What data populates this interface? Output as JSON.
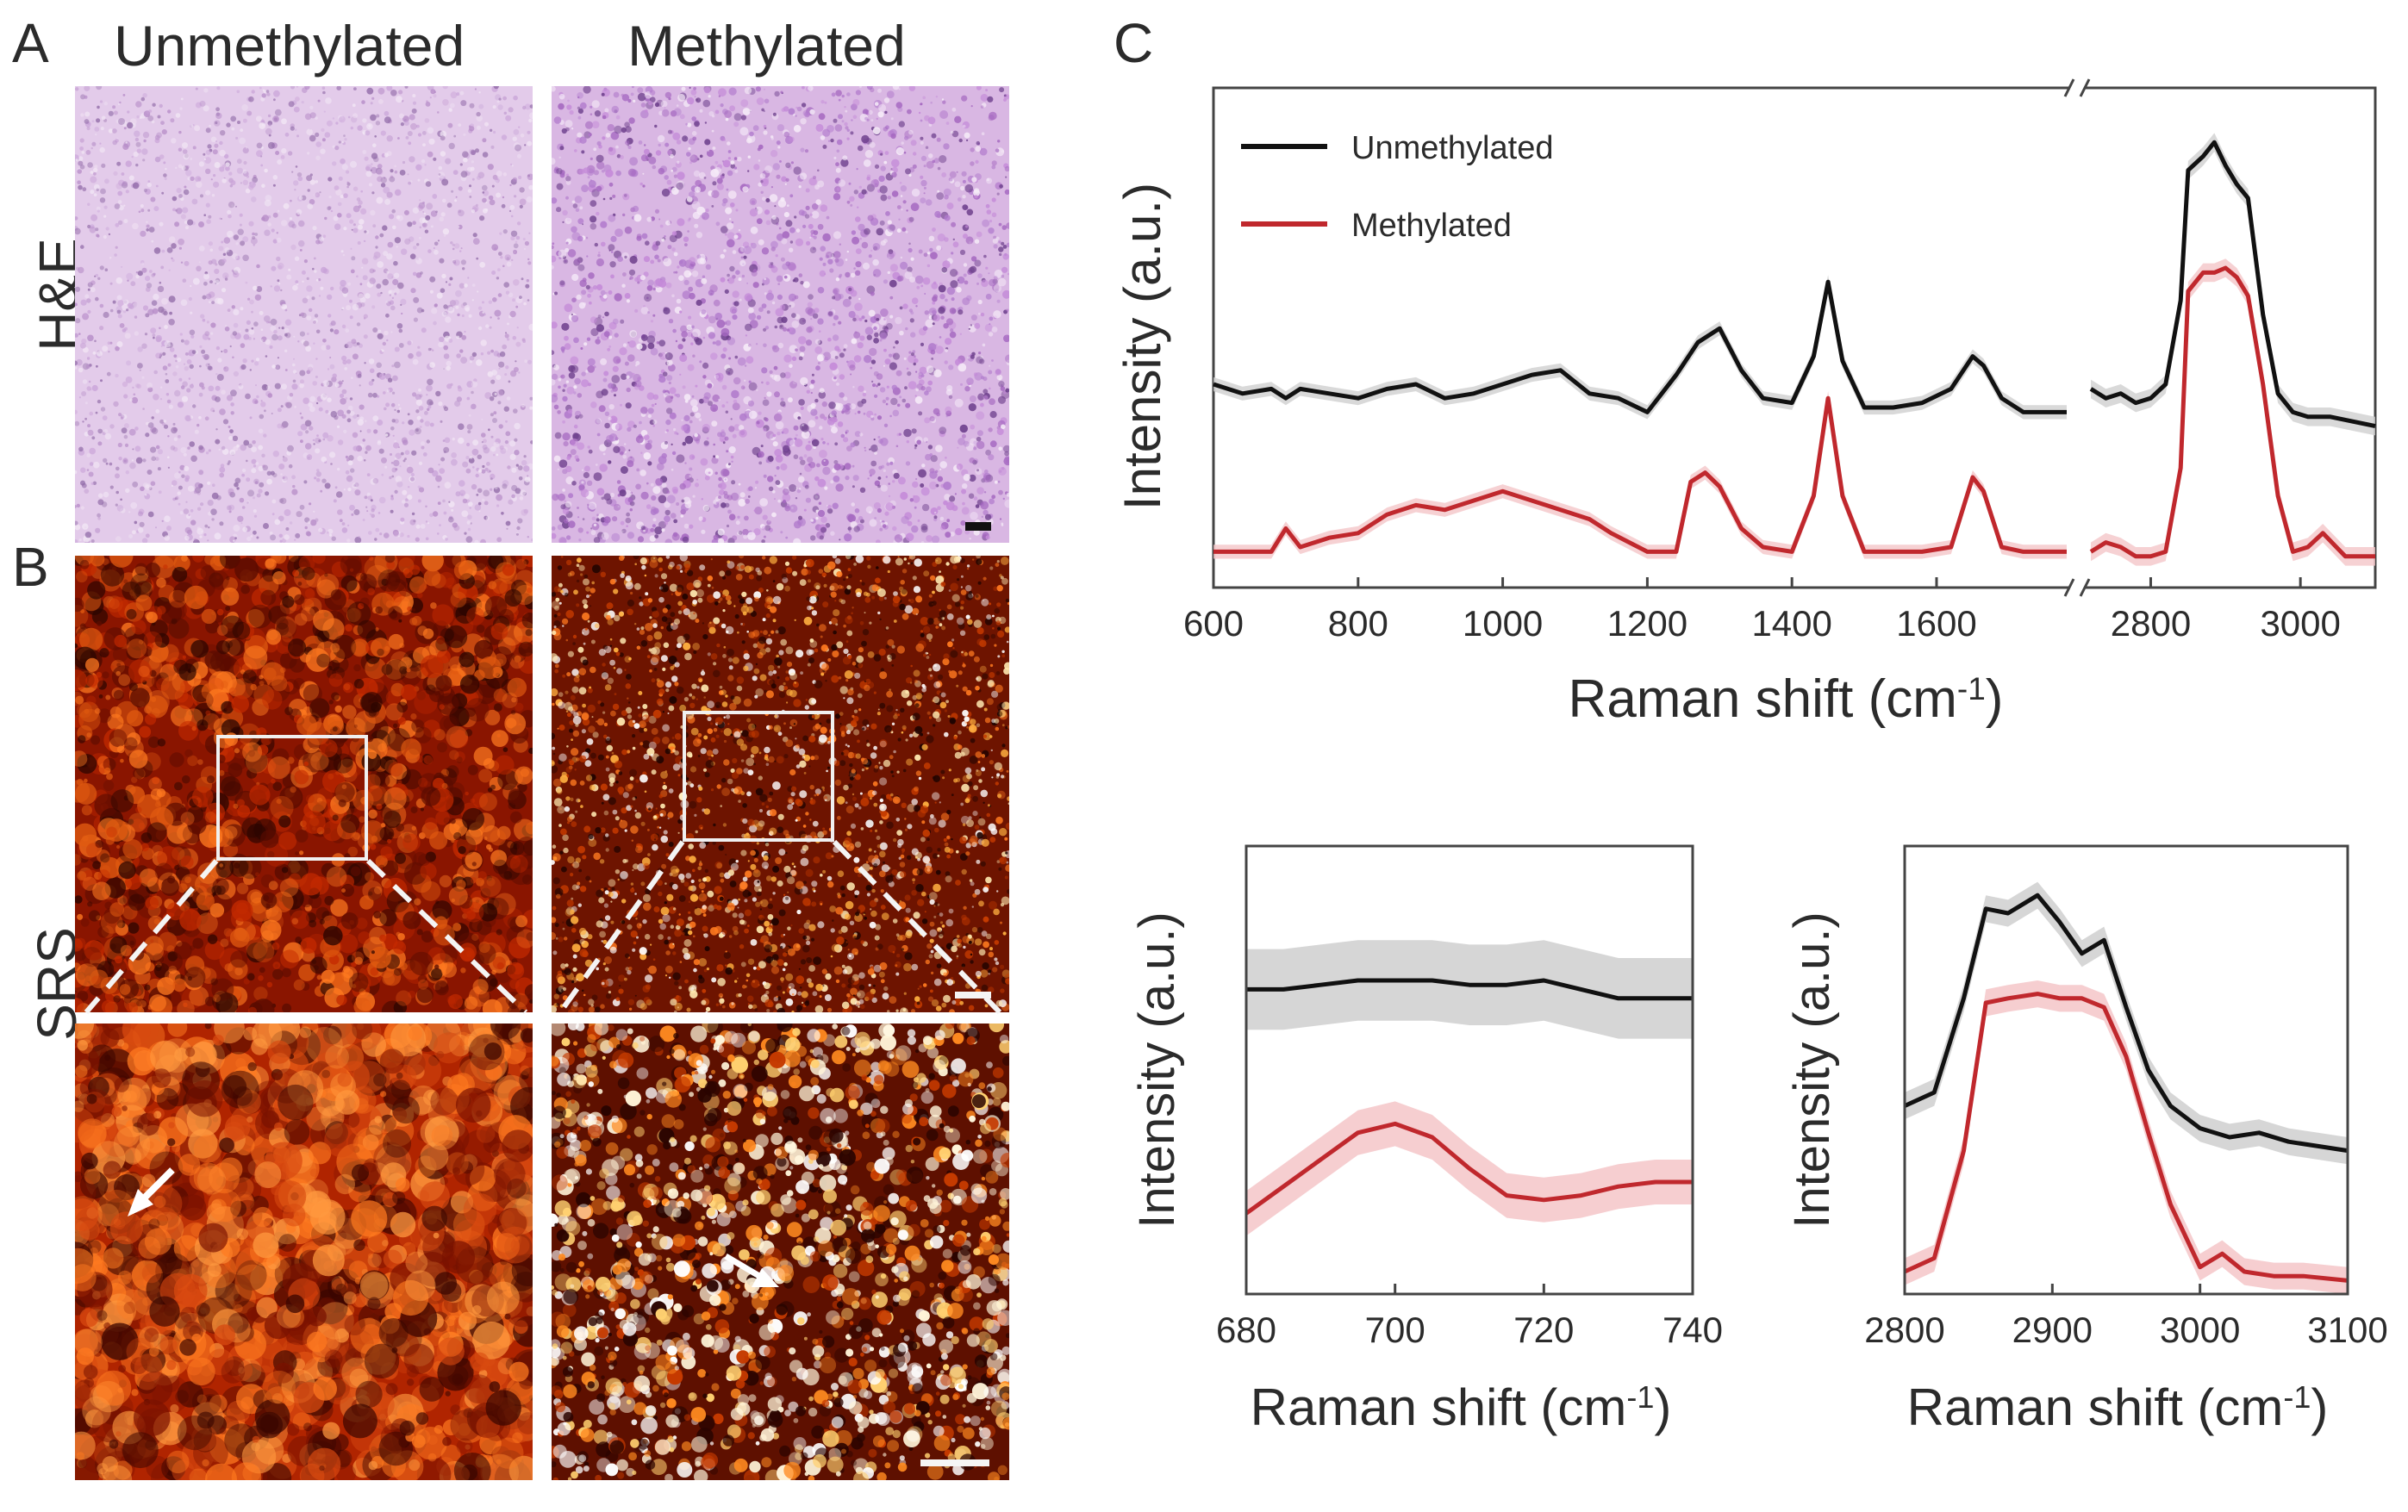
{
  "figure": {
    "panel_a": "A",
    "panel_b": "B",
    "panel_c": "C",
    "col_unmethylated": "Unmethylated",
    "col_methylated": "Methylated",
    "row_he": "H&E",
    "row_srs": "SRS"
  },
  "colors": {
    "he_bg": "#d9b7e3",
    "srs_bg": "#8a1500",
    "black_series": "#111111",
    "red_series": "#c0282d",
    "black_band": "#cfcfcf",
    "red_band": "#f4c6c8"
  },
  "chart_data": [
    {
      "type": "line",
      "id": "main",
      "xlabel": "Raman shift (cm",
      "xlabel_sup": "-1",
      "xlabel_close": ")",
      "ylabel": "Intensity (a.u.)",
      "axis_break": "//",
      "x_segments": [
        [
          600,
          1780
        ],
        [
          2720,
          3100
        ]
      ],
      "xticks_left": [
        "600",
        "800",
        "1000",
        "1200",
        "1400",
        "1600"
      ],
      "xticks_right": [
        "2800",
        "3000"
      ],
      "xtick_values_left": [
        600,
        800,
        1000,
        1200,
        1400,
        1600
      ],
      "xtick_values_right": [
        2800,
        3000
      ],
      "legend": [
        {
          "name": "Unmethylated",
          "color": "#111111"
        },
        {
          "name": "Methylated",
          "color": "#c0282d"
        }
      ],
      "ylim": [
        0,
        1
      ],
      "series": [
        {
          "name": "Unmethylated",
          "color": "#111111",
          "x": [
            600,
            640,
            680,
            700,
            720,
            760,
            800,
            840,
            880,
            920,
            960,
            1000,
            1040,
            1080,
            1120,
            1160,
            1200,
            1240,
            1270,
            1300,
            1330,
            1360,
            1400,
            1430,
            1450,
            1470,
            1500,
            1540,
            1580,
            1620,
            1650,
            1665,
            1690,
            1720,
            1760,
            1780
          ],
          "y": [
            0.4,
            0.38,
            0.39,
            0.37,
            0.39,
            0.38,
            0.37,
            0.39,
            0.4,
            0.37,
            0.38,
            0.4,
            0.42,
            0.43,
            0.38,
            0.37,
            0.34,
            0.42,
            0.49,
            0.52,
            0.43,
            0.37,
            0.36,
            0.46,
            0.62,
            0.45,
            0.35,
            0.35,
            0.36,
            0.39,
            0.46,
            0.44,
            0.37,
            0.34,
            0.34,
            0.34
          ],
          "x2": [
            2720,
            2740,
            2760,
            2780,
            2800,
            2820,
            2840,
            2850,
            2870,
            2885,
            2900,
            2915,
            2930,
            2950,
            2970,
            2990,
            3010,
            3040,
            3070,
            3100
          ],
          "y2": [
            0.39,
            0.37,
            0.38,
            0.36,
            0.37,
            0.4,
            0.58,
            0.86,
            0.89,
            0.92,
            0.87,
            0.83,
            0.8,
            0.55,
            0.38,
            0.34,
            0.33,
            0.33,
            0.32,
            0.31
          ]
        },
        {
          "name": "Methylated",
          "color": "#c0282d",
          "x": [
            600,
            650,
            680,
            700,
            720,
            760,
            800,
            840,
            880,
            920,
            960,
            1000,
            1040,
            1080,
            1120,
            1150,
            1200,
            1240,
            1260,
            1280,
            1300,
            1330,
            1360,
            1400,
            1430,
            1450,
            1470,
            1500,
            1540,
            1580,
            1620,
            1650,
            1665,
            1690,
            1720,
            1760,
            1780
          ],
          "y": [
            0.04,
            0.04,
            0.04,
            0.09,
            0.05,
            0.07,
            0.08,
            0.12,
            0.14,
            0.13,
            0.15,
            0.17,
            0.15,
            0.13,
            0.11,
            0.08,
            0.04,
            0.04,
            0.19,
            0.21,
            0.18,
            0.09,
            0.05,
            0.04,
            0.16,
            0.37,
            0.16,
            0.04,
            0.04,
            0.04,
            0.05,
            0.2,
            0.17,
            0.05,
            0.04,
            0.04,
            0.04
          ],
          "x2": [
            2720,
            2740,
            2760,
            2780,
            2800,
            2820,
            2840,
            2850,
            2870,
            2885,
            2900,
            2915,
            2930,
            2950,
            2970,
            2990,
            3010,
            3030,
            3060,
            3100
          ],
          "y2": [
            0.04,
            0.06,
            0.05,
            0.03,
            0.03,
            0.04,
            0.22,
            0.6,
            0.64,
            0.64,
            0.65,
            0.63,
            0.59,
            0.4,
            0.16,
            0.04,
            0.05,
            0.08,
            0.03,
            0.03
          ]
        }
      ]
    },
    {
      "type": "line",
      "id": "zoom1",
      "xlabel": "Raman shift (cm",
      "xlabel_sup": "-1",
      "xlabel_close": ")",
      "ylabel": "Intensity (a.u.)",
      "xlim": [
        680,
        740
      ],
      "xticks": [
        "680",
        "700",
        "720",
        "740"
      ],
      "xtick_values": [
        680,
        700,
        720,
        740
      ],
      "ylim": [
        0,
        1
      ],
      "series": [
        {
          "name": "Unmethylated",
          "color": "#111111",
          "x": [
            680,
            685,
            690,
            695,
            700,
            705,
            710,
            715,
            720,
            725,
            730,
            735,
            740
          ],
          "y": [
            0.68,
            0.68,
            0.69,
            0.7,
            0.7,
            0.7,
            0.69,
            0.69,
            0.7,
            0.68,
            0.66,
            0.66,
            0.66
          ],
          "band": 0.09
        },
        {
          "name": "Methylated",
          "color": "#c0282d",
          "x": [
            680,
            685,
            690,
            695,
            700,
            705,
            710,
            715,
            720,
            725,
            730,
            735,
            740
          ],
          "y": [
            0.18,
            0.24,
            0.3,
            0.36,
            0.38,
            0.35,
            0.28,
            0.22,
            0.21,
            0.22,
            0.24,
            0.25,
            0.25
          ],
          "band": 0.05
        }
      ]
    },
    {
      "type": "line",
      "id": "zoom2",
      "xlabel": "Raman shift (cm",
      "xlabel_sup": "-1",
      "xlabel_close": ")",
      "ylabel": "Intensity (a.u.)",
      "xlim": [
        2800,
        3100
      ],
      "xticks": [
        "2800",
        "2900",
        "3000",
        "3100"
      ],
      "xtick_values": [
        2800,
        2900,
        3000,
        3100
      ],
      "ylim": [
        0,
        1
      ],
      "series": [
        {
          "name": "Unmethylated",
          "color": "#111111",
          "x": [
            2800,
            2820,
            2840,
            2855,
            2870,
            2890,
            2905,
            2920,
            2935,
            2950,
            2965,
            2980,
            3000,
            3020,
            3040,
            3060,
            3080,
            3100
          ],
          "y": [
            0.42,
            0.45,
            0.66,
            0.86,
            0.85,
            0.89,
            0.83,
            0.76,
            0.79,
            0.64,
            0.5,
            0.42,
            0.37,
            0.35,
            0.36,
            0.34,
            0.33,
            0.32
          ],
          "band": 0.03
        },
        {
          "name": "Methylated",
          "color": "#c0282d",
          "x": [
            2800,
            2820,
            2840,
            2855,
            2870,
            2890,
            2905,
            2920,
            2935,
            2950,
            2965,
            2980,
            3000,
            3015,
            3030,
            3050,
            3070,
            3100
          ],
          "y": [
            0.05,
            0.08,
            0.32,
            0.65,
            0.66,
            0.67,
            0.66,
            0.66,
            0.64,
            0.53,
            0.36,
            0.2,
            0.06,
            0.09,
            0.05,
            0.04,
            0.04,
            0.03
          ],
          "band": 0.03
        }
      ]
    }
  ]
}
